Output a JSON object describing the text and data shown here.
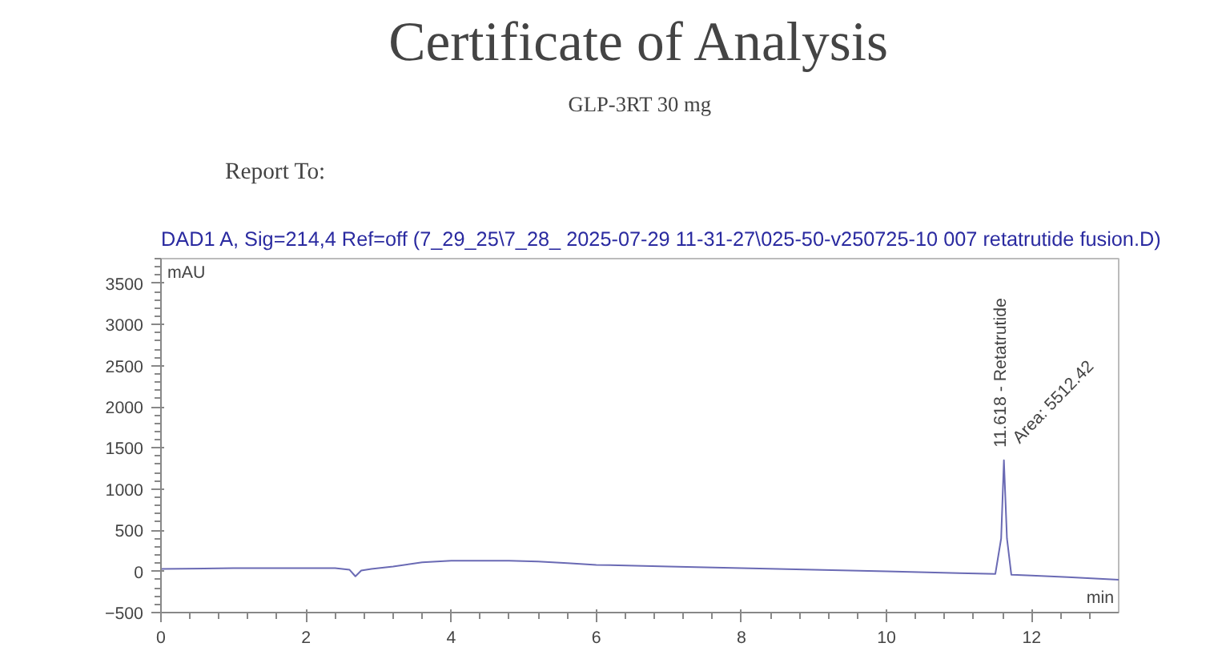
{
  "chart_data": {
    "type": "line",
    "title": "Certificate of Analysis",
    "subtitle": "GLP-3RT 30 mg",
    "xlabel": "min",
    "ylabel": "mAU",
    "annotations": [
      "Report To:",
      "DAD1 A, Sig=214,4 Ref=off (7_29_25\\7_28_ 2025-07-29 11-31-27\\025-50-v250725-10 007 retatrutide fusion.D)",
      {
        "text": "11.618 - Retatrutide",
        "x": 11.618,
        "y": 1350
      },
      {
        "text": "Area: 5512.42",
        "x": 11.618,
        "y": 1350
      }
    ],
    "x": [
      0,
      1,
      2,
      2.4,
      2.6,
      2.68,
      2.76,
      2.9,
      3.2,
      3.6,
      4,
      4.4,
      4.8,
      5.2,
      5.6,
      6,
      7,
      8,
      9,
      10,
      11,
      11.5,
      11.58,
      11.618,
      11.66,
      11.72,
      12,
      12.5,
      13.2
    ],
    "series": [
      {
        "color": "#6a6ab4",
        "values": [
          30,
          40,
          40,
          40,
          20,
          -60,
          10,
          30,
          60,
          110,
          130,
          130,
          130,
          120,
          100,
          80,
          60,
          40,
          20,
          0,
          -20,
          -30,
          400,
          1350,
          400,
          -40,
          -50,
          -70,
          -100
        ]
      }
    ],
    "xlim": [
      0,
      13.2
    ],
    "ylim": [
      -500,
      3800
    ],
    "xticks": [
      0,
      2,
      4,
      6,
      8,
      10,
      12
    ],
    "yticks": [
      -500,
      0,
      500,
      1000,
      1500,
      2000,
      2500,
      3000,
      3500
    ],
    "grid": false,
    "marker": "none",
    "line_style": "solid"
  }
}
